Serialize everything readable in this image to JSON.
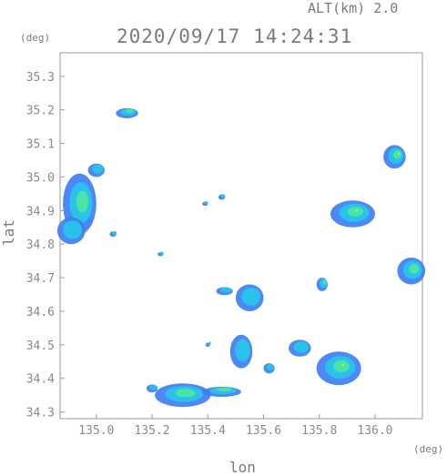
{
  "header": {
    "altitude_label": "ALT(km) 2.0",
    "timestamp": "2020/09/17 14:24:31"
  },
  "chart_data": {
    "type": "heatmap",
    "title": "2020/09/17 14:24:31",
    "subtitle": "ALT(km) 2.0",
    "xlabel": "lon",
    "ylabel": "lat",
    "x_unit": "(deg)",
    "y_unit": "(deg)",
    "xlim": [
      134.87,
      136.17
    ],
    "ylim": [
      34.28,
      35.37
    ],
    "x_ticks": [
      135.0,
      135.2,
      135.4,
      135.6,
      135.8,
      136.0
    ],
    "x_tick_labels": [
      "135.0",
      "135.2",
      "135.4",
      "135.6",
      "135.8",
      "136.0"
    ],
    "y_ticks": [
      34.3,
      34.4,
      34.5,
      34.6,
      34.7,
      34.8,
      34.9,
      35.0,
      35.1,
      35.2,
      35.3
    ],
    "y_tick_labels": [
      "34.3",
      "34.4",
      "34.5",
      "34.6",
      "34.7",
      "34.8",
      "34.9",
      "35.0",
      "35.1",
      "35.2",
      "35.3"
    ],
    "grid": false,
    "colors": {
      "frame": "#9a9a9a",
      "light": "#3f7df5",
      "moderate": "#27c6e8",
      "heavy": "#4de8a0",
      "intense": "#b8f050"
    },
    "echoes": [
      {
        "lon": 134.94,
        "lat": 34.92,
        "rx": 0.06,
        "ry": 0.09,
        "level": 2
      },
      {
        "lon": 135.0,
        "lat": 35.02,
        "rx": 0.03,
        "ry": 0.02,
        "level": 1
      },
      {
        "lon": 134.91,
        "lat": 34.84,
        "rx": 0.05,
        "ry": 0.04,
        "level": 1
      },
      {
        "lon": 135.11,
        "lat": 35.19,
        "rx": 0.04,
        "ry": 0.015,
        "level": 2
      },
      {
        "lon": 135.06,
        "lat": 34.83,
        "rx": 0.012,
        "ry": 0.008,
        "level": 1
      },
      {
        "lon": 135.92,
        "lat": 34.89,
        "rx": 0.08,
        "ry": 0.04,
        "level": 3
      },
      {
        "lon": 136.07,
        "lat": 35.06,
        "rx": 0.04,
        "ry": 0.035,
        "level": 3
      },
      {
        "lon": 136.13,
        "lat": 34.72,
        "rx": 0.05,
        "ry": 0.04,
        "level": 2
      },
      {
        "lon": 135.81,
        "lat": 34.68,
        "rx": 0.02,
        "ry": 0.02,
        "level": 2
      },
      {
        "lon": 135.87,
        "lat": 34.43,
        "rx": 0.08,
        "ry": 0.05,
        "level": 3
      },
      {
        "lon": 135.73,
        "lat": 34.49,
        "rx": 0.04,
        "ry": 0.025,
        "level": 1
      },
      {
        "lon": 135.52,
        "lat": 34.48,
        "rx": 0.04,
        "ry": 0.05,
        "level": 1
      },
      {
        "lon": 135.31,
        "lat": 34.35,
        "rx": 0.1,
        "ry": 0.035,
        "level": 2
      },
      {
        "lon": 135.2,
        "lat": 34.37,
        "rx": 0.02,
        "ry": 0.012,
        "level": 1
      },
      {
        "lon": 135.45,
        "lat": 34.36,
        "rx": 0.07,
        "ry": 0.015,
        "level": 2
      },
      {
        "lon": 135.55,
        "lat": 34.64,
        "rx": 0.05,
        "ry": 0.04,
        "level": 1
      },
      {
        "lon": 135.46,
        "lat": 34.66,
        "rx": 0.03,
        "ry": 0.012,
        "level": 1
      },
      {
        "lon": 135.45,
        "lat": 34.94,
        "rx": 0.012,
        "ry": 0.008,
        "level": 1
      },
      {
        "lon": 135.4,
        "lat": 34.5,
        "rx": 0.008,
        "ry": 0.006,
        "level": 2
      },
      {
        "lon": 135.62,
        "lat": 34.43,
        "rx": 0.02,
        "ry": 0.015,
        "level": 1
      },
      {
        "lon": 135.23,
        "lat": 34.77,
        "rx": 0.01,
        "ry": 0.006,
        "level": 1
      },
      {
        "lon": 135.39,
        "lat": 34.92,
        "rx": 0.01,
        "ry": 0.006,
        "level": 1
      }
    ]
  }
}
